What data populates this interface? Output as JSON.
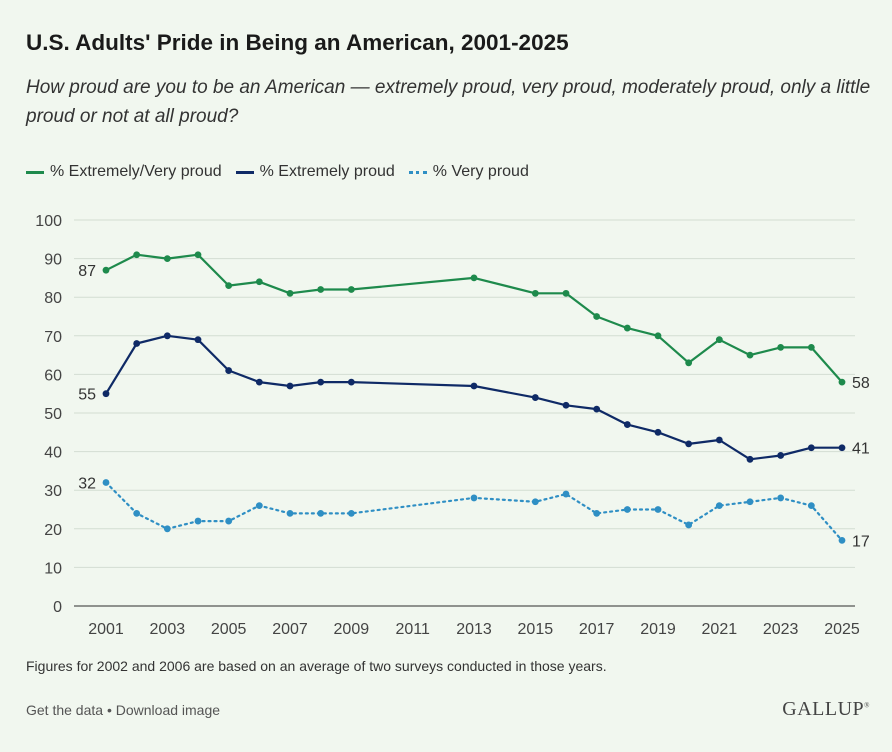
{
  "header": {
    "title": "U.S. Adults' Pride in Being an American, 2001-2025",
    "subtitle": "How proud are you to be an American — extremely proud, very proud, moderately proud, only a little proud or not at all proud?"
  },
  "footer": {
    "note": "Figures for 2002 and 2006 are based on an average of two surveys conducted in those years.",
    "get_data": "Get the data",
    "separator": "•",
    "download": "Download image",
    "brand": "GALLUP"
  },
  "chart_data": {
    "type": "line",
    "title": "U.S. Adults' Pride in Being an American, 2001-2025",
    "xlabel": "",
    "ylabel": "",
    "ylim": [
      0,
      100
    ],
    "yticks": [
      0,
      10,
      20,
      30,
      40,
      50,
      60,
      70,
      80,
      90,
      100
    ],
    "xticks": [
      2001,
      2003,
      2005,
      2007,
      2009,
      2011,
      2013,
      2015,
      2017,
      2019,
      2021,
      2023,
      2025
    ],
    "grid": true,
    "legend_position": "top-left",
    "series": [
      {
        "name": "% Extremely/Very proud",
        "color": "#1e8a4c",
        "style": "solid",
        "x": [
          2001,
          2002,
          2003,
          2004,
          2005,
          2006,
          2007,
          2008,
          2009,
          2013,
          2015,
          2016,
          2017,
          2018,
          2019,
          2020,
          2021,
          2022,
          2023,
          2024,
          2025
        ],
        "values": [
          87,
          91,
          90,
          91,
          83,
          84,
          81,
          82,
          82,
          85,
          81,
          81,
          75,
          72,
          70,
          63,
          69,
          65,
          67,
          67,
          58
        ],
        "start_label": "87",
        "end_label": "58"
      },
      {
        "name": "% Extremely proud",
        "color": "#0f2a66",
        "style": "solid",
        "x": [
          2001,
          2002,
          2003,
          2004,
          2005,
          2006,
          2007,
          2008,
          2009,
          2013,
          2015,
          2016,
          2017,
          2018,
          2019,
          2020,
          2021,
          2022,
          2023,
          2024,
          2025
        ],
        "values": [
          55,
          68,
          70,
          69,
          61,
          58,
          57,
          58,
          58,
          57,
          54,
          52,
          51,
          47,
          45,
          42,
          43,
          38,
          39,
          41,
          41
        ],
        "start_label": "55",
        "end_label": "41"
      },
      {
        "name": "% Very proud",
        "color": "#2f8fc4",
        "style": "dotted",
        "x": [
          2001,
          2002,
          2003,
          2004,
          2005,
          2006,
          2007,
          2008,
          2009,
          2013,
          2015,
          2016,
          2017,
          2018,
          2019,
          2020,
          2021,
          2022,
          2023,
          2024,
          2025
        ],
        "values": [
          32,
          24,
          20,
          22,
          22,
          26,
          24,
          24,
          24,
          28,
          27,
          29,
          24,
          25,
          25,
          21,
          26,
          27,
          28,
          26,
          17
        ],
        "start_label": "32",
        "end_label": "17"
      }
    ]
  }
}
